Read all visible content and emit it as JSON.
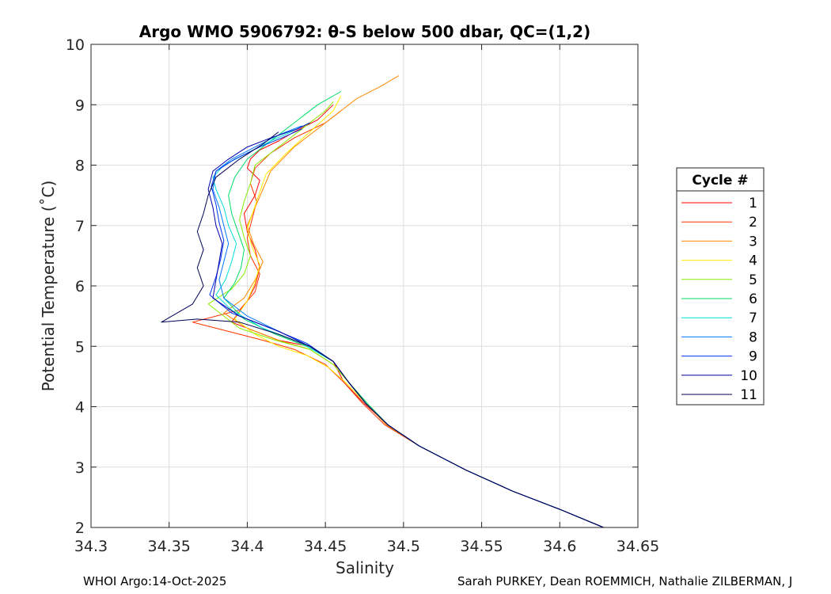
{
  "chart_data": {
    "type": "line",
    "title": "Argo WMO 5906792: θ-S below 500 dbar,  QC=(1,2)",
    "xlabel": "Salinity",
    "ylabel": "Potential Temperature (˚C)",
    "xlim": [
      34.3,
      34.65
    ],
    "ylim": [
      2,
      10
    ],
    "xticks": [
      "34.3",
      "34.35",
      "34.4",
      "34.45",
      "34.5",
      "34.55",
      "34.6",
      "34.65"
    ],
    "yticks": [
      "2",
      "3",
      "4",
      "5",
      "6",
      "7",
      "8",
      "9",
      "10"
    ],
    "grid": true,
    "legend": {
      "title": "Cycle #",
      "placement": "right"
    },
    "series": [
      {
        "name": "1",
        "color": "#ff0000",
        "x": [
          34.628,
          34.6,
          34.57,
          34.54,
          34.51,
          34.49,
          34.475,
          34.462,
          34.455,
          34.44,
          34.42,
          34.405,
          34.39,
          34.4,
          34.405,
          34.408,
          34.405,
          34.4,
          34.398,
          34.405,
          34.408,
          34.4,
          34.402,
          34.408,
          34.42,
          34.43,
          34.445,
          34.455
        ],
        "y": [
          2.0,
          2.3,
          2.6,
          2.95,
          3.35,
          3.7,
          4.05,
          4.4,
          4.75,
          5.0,
          5.1,
          5.25,
          5.4,
          5.75,
          6.0,
          6.3,
          6.6,
          6.9,
          7.2,
          7.5,
          7.75,
          7.95,
          8.1,
          8.25,
          8.4,
          8.55,
          8.75,
          9.0
        ]
      },
      {
        "name": "2",
        "color": "#ff3300",
        "x": [
          34.628,
          34.6,
          34.57,
          34.54,
          34.51,
          34.488,
          34.474,
          34.462,
          34.45,
          34.43,
          34.41,
          34.38,
          34.365,
          34.395,
          34.405,
          34.408,
          34.402,
          34.4,
          34.403,
          34.406,
          34.402,
          34.405,
          34.415,
          34.43,
          34.45,
          34.46
        ],
        "y": [
          2.0,
          2.3,
          2.6,
          2.95,
          3.35,
          3.7,
          4.05,
          4.4,
          4.7,
          4.95,
          5.1,
          5.3,
          5.4,
          5.6,
          5.9,
          6.2,
          6.5,
          6.8,
          7.1,
          7.4,
          7.7,
          7.95,
          8.2,
          8.45,
          8.7,
          8.9
        ]
      },
      {
        "name": "3",
        "color": "#ff8800",
        "x": [
          34.628,
          34.6,
          34.57,
          34.54,
          34.51,
          34.489,
          34.476,
          34.465,
          34.455,
          34.44,
          34.42,
          34.4,
          34.385,
          34.398,
          34.405,
          34.41,
          34.404,
          34.4,
          34.405,
          34.41,
          34.415,
          34.43,
          34.45,
          34.47,
          34.485,
          34.497
        ],
        "y": [
          2.0,
          2.3,
          2.6,
          2.95,
          3.35,
          3.7,
          4.05,
          4.4,
          4.7,
          4.95,
          5.1,
          5.3,
          5.55,
          5.8,
          6.1,
          6.4,
          6.7,
          7.0,
          7.3,
          7.6,
          7.9,
          8.3,
          8.7,
          9.1,
          9.3,
          9.48
        ]
      },
      {
        "name": "4",
        "color": "#ffee00",
        "x": [
          34.628,
          34.6,
          34.57,
          34.54,
          34.51,
          34.49,
          34.476,
          34.463,
          34.452,
          34.438,
          34.42,
          34.405,
          34.392,
          34.4,
          34.405,
          34.408,
          34.403,
          34.4,
          34.404,
          34.408,
          34.412,
          34.425,
          34.44,
          34.455,
          34.46
        ],
        "y": [
          2.0,
          2.3,
          2.6,
          2.95,
          3.35,
          3.7,
          4.05,
          4.4,
          4.65,
          4.85,
          5.0,
          5.2,
          5.45,
          5.75,
          6.05,
          6.35,
          6.65,
          6.95,
          7.25,
          7.55,
          7.85,
          8.2,
          8.55,
          8.9,
          9.15
        ]
      },
      {
        "name": "5",
        "color": "#88ee00",
        "x": [
          34.628,
          34.6,
          34.57,
          34.54,
          34.51,
          34.49,
          34.477,
          34.465,
          34.455,
          34.44,
          34.418,
          34.395,
          34.375,
          34.39,
          34.398,
          34.402,
          34.398,
          34.395,
          34.398,
          34.402,
          34.405,
          34.42,
          34.435,
          34.45,
          34.455
        ],
        "y": [
          2.0,
          2.3,
          2.6,
          2.95,
          3.35,
          3.7,
          4.05,
          4.4,
          4.7,
          4.95,
          5.1,
          5.3,
          5.7,
          5.95,
          6.2,
          6.5,
          6.8,
          7.1,
          7.4,
          7.7,
          8.0,
          8.3,
          8.6,
          8.9,
          9.05
        ]
      },
      {
        "name": "6",
        "color": "#00dd66",
        "x": [
          34.628,
          34.6,
          34.57,
          34.54,
          34.51,
          34.49,
          34.477,
          34.465,
          34.455,
          34.438,
          34.418,
          34.398,
          34.385,
          34.392,
          34.396,
          34.398,
          34.394,
          34.39,
          34.388,
          34.392,
          34.4,
          34.415,
          34.43,
          34.445,
          34.46
        ],
        "y": [
          2.0,
          2.3,
          2.6,
          2.95,
          3.35,
          3.7,
          4.05,
          4.4,
          4.75,
          5.0,
          5.2,
          5.45,
          5.8,
          6.05,
          6.3,
          6.6,
          6.9,
          7.2,
          7.5,
          7.8,
          8.1,
          8.4,
          8.7,
          9.0,
          9.22
        ]
      },
      {
        "name": "7",
        "color": "#00dddd",
        "x": [
          34.628,
          34.6,
          34.57,
          34.54,
          34.51,
          34.49,
          34.476,
          34.465,
          34.455,
          34.435,
          34.41,
          34.39,
          34.38,
          34.386,
          34.39,
          34.393,
          34.388,
          34.385,
          34.38,
          34.378,
          34.385,
          34.4,
          34.415,
          34.428,
          34.44
        ],
        "y": [
          2.0,
          2.3,
          2.6,
          2.95,
          3.35,
          3.7,
          4.05,
          4.4,
          4.75,
          5.05,
          5.3,
          5.6,
          5.85,
          6.1,
          6.4,
          6.7,
          7.0,
          7.3,
          7.6,
          7.8,
          8.0,
          8.2,
          8.4,
          8.55,
          8.7
        ]
      },
      {
        "name": "8",
        "color": "#0077ff",
        "x": [
          34.628,
          34.6,
          34.57,
          34.54,
          34.51,
          34.49,
          34.476,
          34.465,
          34.455,
          34.44,
          34.42,
          34.4,
          34.385,
          34.382,
          34.385,
          34.388,
          34.385,
          34.382,
          34.378,
          34.38,
          34.39,
          34.405,
          34.42,
          34.435
        ],
        "y": [
          2.0,
          2.3,
          2.6,
          2.95,
          3.35,
          3.7,
          4.05,
          4.4,
          4.75,
          5.0,
          5.25,
          5.5,
          5.8,
          6.1,
          6.4,
          6.7,
          7.0,
          7.3,
          7.6,
          7.9,
          8.1,
          8.3,
          8.5,
          8.65
        ]
      },
      {
        "name": "9",
        "color": "#0033ee",
        "x": [
          34.628,
          34.6,
          34.57,
          34.54,
          34.51,
          34.49,
          34.476,
          34.465,
          34.455,
          34.438,
          34.415,
          34.39,
          34.376,
          34.38,
          34.383,
          34.385,
          34.382,
          34.38,
          34.377,
          34.38,
          34.392,
          34.408,
          34.422,
          34.435
        ],
        "y": [
          2.0,
          2.3,
          2.6,
          2.95,
          3.35,
          3.7,
          4.05,
          4.4,
          4.75,
          5.05,
          5.3,
          5.55,
          5.85,
          6.15,
          6.45,
          6.75,
          7.05,
          7.35,
          7.65,
          7.9,
          8.1,
          8.3,
          8.45,
          8.6
        ]
      },
      {
        "name": "10",
        "color": "#0000aa",
        "x": [
          34.628,
          34.6,
          34.57,
          34.54,
          34.51,
          34.49,
          34.476,
          34.465,
          34.455,
          34.44,
          34.42,
          34.395,
          34.378,
          34.38,
          34.382,
          34.384,
          34.38,
          34.378,
          34.375,
          34.378,
          34.388,
          34.4,
          34.415,
          34.432,
          34.44
        ],
        "y": [
          2.0,
          2.3,
          2.6,
          2.95,
          3.35,
          3.7,
          4.05,
          4.4,
          4.75,
          5.0,
          5.25,
          5.5,
          5.8,
          6.1,
          6.4,
          6.7,
          7.0,
          7.3,
          7.6,
          7.9,
          8.1,
          8.3,
          8.45,
          8.6,
          8.7
        ]
      },
      {
        "name": "11",
        "color": "#000055",
        "x": [
          34.628,
          34.6,
          34.57,
          34.54,
          34.51,
          34.49,
          34.476,
          34.465,
          34.455,
          34.44,
          34.42,
          34.395,
          34.368,
          34.345,
          34.365,
          34.372,
          34.368,
          34.372,
          34.368,
          34.372,
          34.375,
          34.38,
          34.395,
          34.41,
          34.42
        ],
        "y": [
          2.0,
          2.3,
          2.6,
          2.95,
          3.35,
          3.7,
          4.05,
          4.4,
          4.75,
          5.0,
          5.2,
          5.4,
          5.45,
          5.4,
          5.7,
          6.0,
          6.3,
          6.6,
          6.9,
          7.2,
          7.5,
          7.8,
          8.1,
          8.35,
          8.55
        ]
      }
    ]
  },
  "footer": {
    "left": "WHOI Argo:14-Oct-2025",
    "right": "Sarah PURKEY, Dean ROEMMICH, Nathalie ZILBERMAN, J"
  }
}
